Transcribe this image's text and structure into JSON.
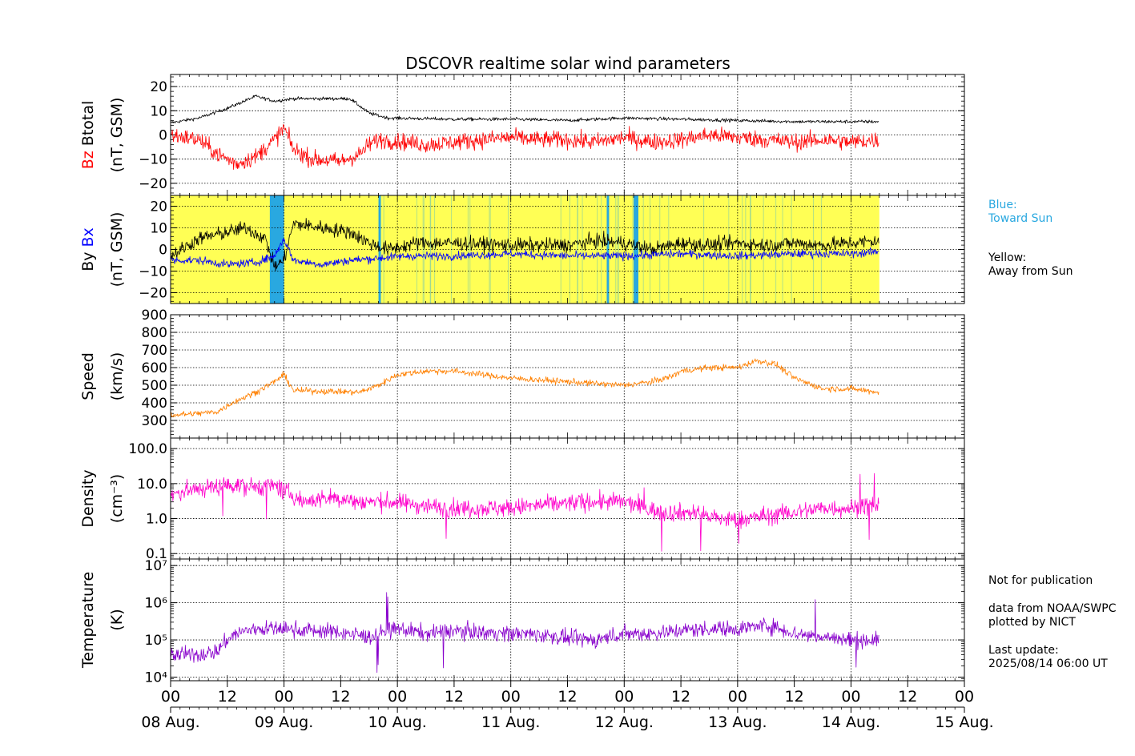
{
  "title": "DSCOVR realtime solar wind parameters",
  "notes": {
    "blue_label": "Blue:",
    "blue_text": "Toward Sun",
    "yellow_label": "Yellow:",
    "yellow_text": "Away from Sun",
    "not_for_publication": "Not for publication",
    "data_from": "data from NOAA/SWPC",
    "plotted_by": "plotted by NICT",
    "last_update_label": "Last update:",
    "last_update_value": "2025/08/14 06:00 UT"
  },
  "colors": {
    "btotal": "#000000",
    "bz": "#ff0000",
    "by": "#000000",
    "bx": "#0000ff",
    "speed": "#ff8000",
    "density": "#ff00cc",
    "temperature": "#8800cc",
    "toward_sun": "#29a8e0",
    "away_from_sun": "#ffff55",
    "note_blue": "#29a8e0"
  },
  "chart_data": {
    "type": "line",
    "x_axis": {
      "unit": "hours since 08 Aug. 00 UT",
      "range_hours": [
        0,
        168
      ],
      "data_end_hours": 150,
      "hour_tick_labels": [
        "00",
        "12",
        "00",
        "12",
        "00",
        "12",
        "00",
        "12",
        "00",
        "12",
        "00",
        "12",
        "00",
        "12",
        "00"
      ],
      "date_labels": [
        "08 Aug.",
        "09 Aug.",
        "10 Aug.",
        "11 Aug.",
        "12 Aug.",
        "13 Aug.",
        "14 Aug.",
        "15 Aug."
      ]
    },
    "panels": [
      {
        "id": "magnetic_total",
        "ylabel_lines": [
          "Bz  Btotal",
          "(nT, GSM)"
        ],
        "ylim": [
          -25,
          25
        ],
        "yticks": [
          -20,
          -10,
          0,
          10,
          20
        ],
        "ytick_labels": [
          "−20",
          "−10",
          "0",
          "10",
          "20"
        ],
        "series": [
          {
            "name": "Btotal",
            "color": "#000000",
            "points": [
              [
                0,
                5
              ],
              [
                6,
                7
              ],
              [
                12,
                11
              ],
              [
                18,
                16
              ],
              [
                22,
                14
              ],
              [
                26,
                15
              ],
              [
                34,
                15
              ],
              [
                38,
                15
              ],
              [
                42,
                9
              ],
              [
                46,
                7
              ],
              [
                60,
                6.5
              ],
              [
                72,
                6.5
              ],
              [
                84,
                6
              ],
              [
                96,
                7
              ],
              [
                108,
                6.5
              ],
              [
                120,
                6
              ],
              [
                132,
                5.5
              ],
              [
                144,
                5.5
              ],
              [
                150,
                5.5
              ]
            ]
          },
          {
            "name": "Bz",
            "color": "#ff0000",
            "points": [
              [
                0,
                0
              ],
              [
                6,
                -2
              ],
              [
                10,
                -8
              ],
              [
                14,
                -12
              ],
              [
                18,
                -9
              ],
              [
                22,
                -2
              ],
              [
                24,
                3
              ],
              [
                26,
                -6
              ],
              [
                30,
                -10
              ],
              [
                36,
                -11
              ],
              [
                40,
                -8
              ],
              [
                42,
                -4
              ],
              [
                44,
                -2
              ],
              [
                50,
                -3
              ],
              [
                54,
                -4
              ],
              [
                60,
                -3
              ],
              [
                66,
                -2
              ],
              [
                72,
                -1
              ],
              [
                78,
                -2
              ],
              [
                84,
                -2
              ],
              [
                90,
                -3
              ],
              [
                96,
                -1
              ],
              [
                102,
                -3
              ],
              [
                108,
                -2
              ],
              [
                114,
                0
              ],
              [
                120,
                -1
              ],
              [
                126,
                -2
              ],
              [
                132,
                -3
              ],
              [
                138,
                -2
              ],
              [
                144,
                -3
              ],
              [
                150,
                -2
              ]
            ]
          }
        ]
      },
      {
        "id": "magnetic_xy",
        "ylabel_lines": [
          "By  Bx",
          "(nT, GSM)"
        ],
        "ylim": [
          -25,
          25
        ],
        "yticks": [
          -20,
          -10,
          0,
          10,
          20
        ],
        "ytick_labels": [
          "−20",
          "−10",
          "0",
          "10",
          "20"
        ],
        "sector_background": "Away from Sun",
        "toward_sun_intervals_hours": [
          [
            21,
            24
          ],
          [
            44,
            44.5
          ],
          [
            92.3,
            92.8
          ],
          [
            98,
            99
          ]
        ],
        "series": [
          {
            "name": "By",
            "color": "#000000",
            "points": [
              [
                0,
                -3
              ],
              [
                6,
                5
              ],
              [
                12,
                8
              ],
              [
                16,
                10
              ],
              [
                20,
                5
              ],
              [
                22,
                -8
              ],
              [
                24,
                -5
              ],
              [
                26,
                12
              ],
              [
                32,
                10
              ],
              [
                38,
                8
              ],
              [
                42,
                3
              ],
              [
                46,
                0
              ],
              [
                52,
                3
              ],
              [
                60,
                3
              ],
              [
                72,
                2
              ],
              [
                84,
                2
              ],
              [
                90,
                4
              ],
              [
                96,
                3
              ],
              [
                102,
                0
              ],
              [
                108,
                3
              ],
              [
                114,
                2
              ],
              [
                120,
                3
              ],
              [
                126,
                2
              ],
              [
                132,
                3
              ],
              [
                138,
                2
              ],
              [
                144,
                3
              ],
              [
                150,
                4
              ]
            ]
          },
          {
            "name": "Bx",
            "color": "#0000ff",
            "points": [
              [
                0,
                -5
              ],
              [
                6,
                -5
              ],
              [
                12,
                -7
              ],
              [
                18,
                -6
              ],
              [
                22,
                -3
              ],
              [
                24,
                5
              ],
              [
                26,
                -5
              ],
              [
                32,
                -7
              ],
              [
                38,
                -5
              ],
              [
                44,
                -4
              ],
              [
                50,
                -3
              ],
              [
                60,
                -3
              ],
              [
                72,
                -2
              ],
              [
                84,
                -3
              ],
              [
                96,
                -3
              ],
              [
                108,
                -2
              ],
              [
                120,
                -3
              ],
              [
                132,
                -2
              ],
              [
                144,
                -2
              ],
              [
                150,
                -1
              ]
            ]
          }
        ]
      },
      {
        "id": "speed",
        "ylabel_lines": [
          "Speed",
          "(km/s)"
        ],
        "ylim": [
          200,
          900
        ],
        "yticks": [
          300,
          400,
          500,
          600,
          700,
          800,
          900
        ],
        "ytick_labels": [
          "300",
          "400",
          "500",
          "600",
          "700",
          "800",
          "900"
        ],
        "series": [
          {
            "name": "Speed",
            "color": "#ff8000",
            "points": [
              [
                0,
                330
              ],
              [
                6,
                340
              ],
              [
                10,
                350
              ],
              [
                13,
                400
              ],
              [
                18,
                460
              ],
              [
                22,
                520
              ],
              [
                24,
                560
              ],
              [
                26,
                470
              ],
              [
                34,
                465
              ],
              [
                40,
                460
              ],
              [
                44,
                500
              ],
              [
                48,
                560
              ],
              [
                54,
                580
              ],
              [
                60,
                580
              ],
              [
                66,
                560
              ],
              [
                72,
                540
              ],
              [
                84,
                520
              ],
              [
                90,
                510
              ],
              [
                96,
                500
              ],
              [
                102,
                520
              ],
              [
                106,
                550
              ],
              [
                108,
                580
              ],
              [
                114,
                600
              ],
              [
                120,
                600
              ],
              [
                124,
                640
              ],
              [
                128,
                620
              ],
              [
                132,
                540
              ],
              [
                138,
                480
              ],
              [
                144,
                480
              ],
              [
                150,
                460
              ]
            ]
          }
        ]
      },
      {
        "id": "density",
        "ylabel_lines": [
          "Density",
          "(cm⁻³)"
        ],
        "log": true,
        "ylim": [
          0.07,
          200
        ],
        "yticks": [
          0.1,
          1.0,
          10.0,
          100.0
        ],
        "ytick_labels": [
          "0.1",
          "1.0",
          "10.0",
          "100.0"
        ],
        "series": [
          {
            "name": "Density",
            "color": "#ff00cc",
            "points": [
              [
                0,
                5
              ],
              [
                6,
                7
              ],
              [
                12,
                9
              ],
              [
                18,
                8
              ],
              [
                22,
                9
              ],
              [
                24,
                6
              ],
              [
                28,
                3
              ],
              [
                34,
                4
              ],
              [
                40,
                3
              ],
              [
                46,
                3
              ],
              [
                52,
                2.5
              ],
              [
                58,
                2
              ],
              [
                66,
                2
              ],
              [
                72,
                2
              ],
              [
                80,
                2.5
              ],
              [
                88,
                3
              ],
              [
                96,
                3
              ],
              [
                100,
                2
              ],
              [
                104,
                1.5
              ],
              [
                110,
                1.5
              ],
              [
                116,
                1
              ],
              [
                120,
                0.9
              ],
              [
                126,
                1.2
              ],
              [
                132,
                1.5
              ],
              [
                138,
                2
              ],
              [
                144,
                2
              ],
              [
                150,
                2.5
              ]
            ]
          }
        ]
      },
      {
        "id": "temperature",
        "ylabel_lines": [
          "Temperature",
          "(K)"
        ],
        "log": true,
        "ylim": [
          8000,
          15000000
        ],
        "yticks": [
          10000,
          100000,
          1000000,
          10000000
        ],
        "ytick_labels": [
          "10⁴",
          "10⁵",
          "10⁶",
          "10⁷"
        ],
        "series": [
          {
            "name": "Temperature",
            "color": "#8800cc",
            "points": [
              [
                0,
                40000
              ],
              [
                6,
                40000
              ],
              [
                10,
                50000
              ],
              [
                14,
                150000
              ],
              [
                18,
                200000
              ],
              [
                24,
                200000
              ],
              [
                30,
                180000
              ],
              [
                36,
                160000
              ],
              [
                42,
                120000
              ],
              [
                48,
                200000
              ],
              [
                54,
                150000
              ],
              [
                60,
                180000
              ],
              [
                66,
                160000
              ],
              [
                72,
                150000
              ],
              [
                78,
                140000
              ],
              [
                84,
                110000
              ],
              [
                90,
                100000
              ],
              [
                96,
                150000
              ],
              [
                102,
                150000
              ],
              [
                108,
                180000
              ],
              [
                114,
                200000
              ],
              [
                120,
                200000
              ],
              [
                126,
                250000
              ],
              [
                132,
                150000
              ],
              [
                138,
                120000
              ],
              [
                144,
                100000
              ],
              [
                150,
                100000
              ]
            ]
          }
        ]
      }
    ]
  }
}
